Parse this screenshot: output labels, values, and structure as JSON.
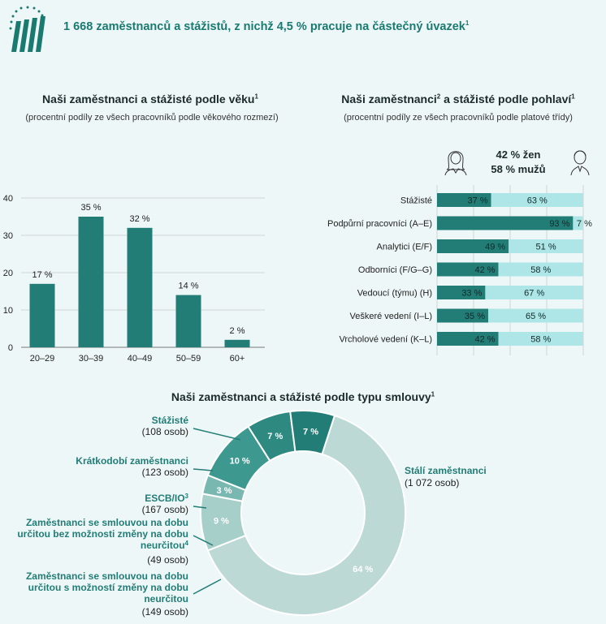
{
  "header": {
    "title": "1 668 zaměstnanců a stážistů, z nichž 4,5 % pracuje na částečný úvazek",
    "title_sup": "1"
  },
  "colors": {
    "primary": "#227d76",
    "light_cyan": "#aee6e7",
    "grey_teal": "#bcd9d6",
    "mid_teal": "#3d9990",
    "light_teal": "#79b8b1",
    "background": "#eef7f8"
  },
  "age_chart": {
    "title": "Naši zaměstnanci a stážisté podle věku",
    "title_sup": "1",
    "subtitle": "(procentní podíly ze všech pracovníků podle věkového rozmezí)",
    "chart_data": {
      "type": "bar",
      "categories": [
        "20–29",
        "30–39",
        "40–49",
        "50–59",
        "60+"
      ],
      "values": [
        17,
        35,
        32,
        14,
        2
      ],
      "data_labels": [
        "17 %",
        "35 %",
        "32 %",
        "14 %",
        "2 %"
      ],
      "yticks": [
        "0",
        "10",
        "20",
        "30",
        "40"
      ],
      "ylim": [
        0,
        40
      ],
      "grid": true
    }
  },
  "gender_chart": {
    "title": "Naši zaměstnanci",
    "title_sup": "2",
    "title_rest": " a stážisté podle pohlaví",
    "title_sup2": "1",
    "subtitle": "(procentní podíly ze všech pracovníků podle platové třídy)",
    "women_total": "42 % žen",
    "men_total": "58 % mužů",
    "icons": [
      "woman-icon",
      "man-icon"
    ],
    "chart_data": {
      "type": "bar",
      "orientation": "horizontal-stacked",
      "categories": [
        "Stážisté",
        "Podpůrní pracovníci (A–E)",
        "Analytici (E/F)",
        "Odborníci (F/G–G)",
        "Vedoucí (týmu) (H)",
        "Veškeré vedení (I–L)",
        "Vrcholové vedení (K–L)"
      ],
      "series": [
        {
          "values": [
            37,
            93,
            49,
            42,
            33,
            35,
            42
          ],
          "labels": [
            "37 %",
            "93 %",
            "49 %",
            "42 %",
            "33 %",
            "35 %",
            "42 %"
          ]
        },
        {
          "values": [
            63,
            7,
            51,
            58,
            67,
            65,
            58
          ],
          "labels": [
            "63 %",
            "7 %",
            "51 %",
            "58 %",
            "67 %",
            "65 %",
            "58 %"
          ]
        }
      ],
      "xlim": [
        0,
        100
      ],
      "grid": true
    }
  },
  "contract_chart": {
    "title": "Naši zaměstnanci a stážisté podle typu smlouvy",
    "title_sup": "1",
    "chart_data": {
      "type": "pie",
      "donut": true,
      "slices": [
        {
          "name": "Stálí zaměstnanci",
          "count_label": "(1 072 osob)",
          "value": 64,
          "label": "64 %",
          "color": "#bcd9d6"
        },
        {
          "name": "Zaměstnanci se smlouvou na dobu určitou s možností změny na dobu neurčitou",
          "count_label": "(149 osob)",
          "value": 9,
          "label": "9 %",
          "color": "#a7cfca"
        },
        {
          "name": "Zaměstnanci se smlouvou na dobu určitou bez možnosti změny na dobu neurčitou",
          "name_sup": "4",
          "count_label": "(49 osob)",
          "value": 3,
          "label": "3 %",
          "color": "#79b8b1"
        },
        {
          "name": "ESCB/IO",
          "name_sup": "3",
          "count_label": "(167 osob)",
          "value": 10,
          "label": "10 %",
          "color": "#3d9990"
        },
        {
          "name": "Krátkodobí zaměstnanci",
          "count_label": "(123 osob)",
          "value": 7,
          "label": "7 %",
          "color": "#2e8a81"
        },
        {
          "name": "Stážisté",
          "count_label": "(108 osob)",
          "value": 7,
          "label": "7 %",
          "color": "#227d76"
        }
      ]
    }
  }
}
